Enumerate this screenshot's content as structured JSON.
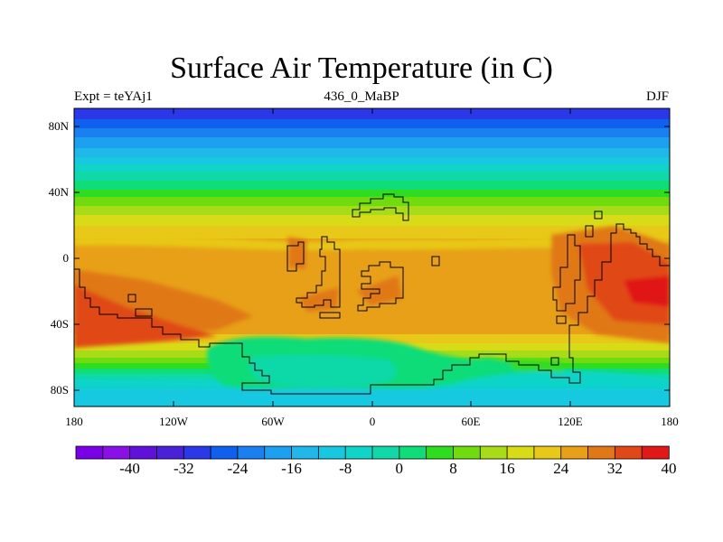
{
  "title": "Surface Air Temperature (in C)",
  "subtitle_left": "Expt = teYAj1",
  "subtitle_center": "436_0_MaBP",
  "subtitle_right": "DJF",
  "map": {
    "lon_ticks": [
      "180",
      "120W",
      "60W",
      "0",
      "60E",
      "120E",
      "180"
    ],
    "lat_ticks": [
      "80N",
      "40N",
      "0",
      "40S",
      "80S"
    ],
    "lat_range": [
      -90,
      90
    ],
    "lon_range": [
      -180,
      180
    ]
  },
  "colorbar": {
    "labels": [
      "-40",
      "-32",
      "-24",
      "-16",
      "-8",
      "0",
      "8",
      "16",
      "24",
      "32",
      "40"
    ],
    "colors": [
      "#7a00e6",
      "#8a10e8",
      "#6010d8",
      "#4a20d8",
      "#2a38e8",
      "#1060f0",
      "#1a80f0",
      "#1ea0f0",
      "#20b8e8",
      "#18c8e0",
      "#10d4c8",
      "#10d8a8",
      "#10dc78",
      "#30dc20",
      "#70dc10",
      "#a8dc18",
      "#d8dc18",
      "#e8c818",
      "#e8a018",
      "#e07818",
      "#e04818",
      "#e01818"
    ]
  },
  "colors": {
    "land_outline": "#000000",
    "frame": "#000000"
  }
}
